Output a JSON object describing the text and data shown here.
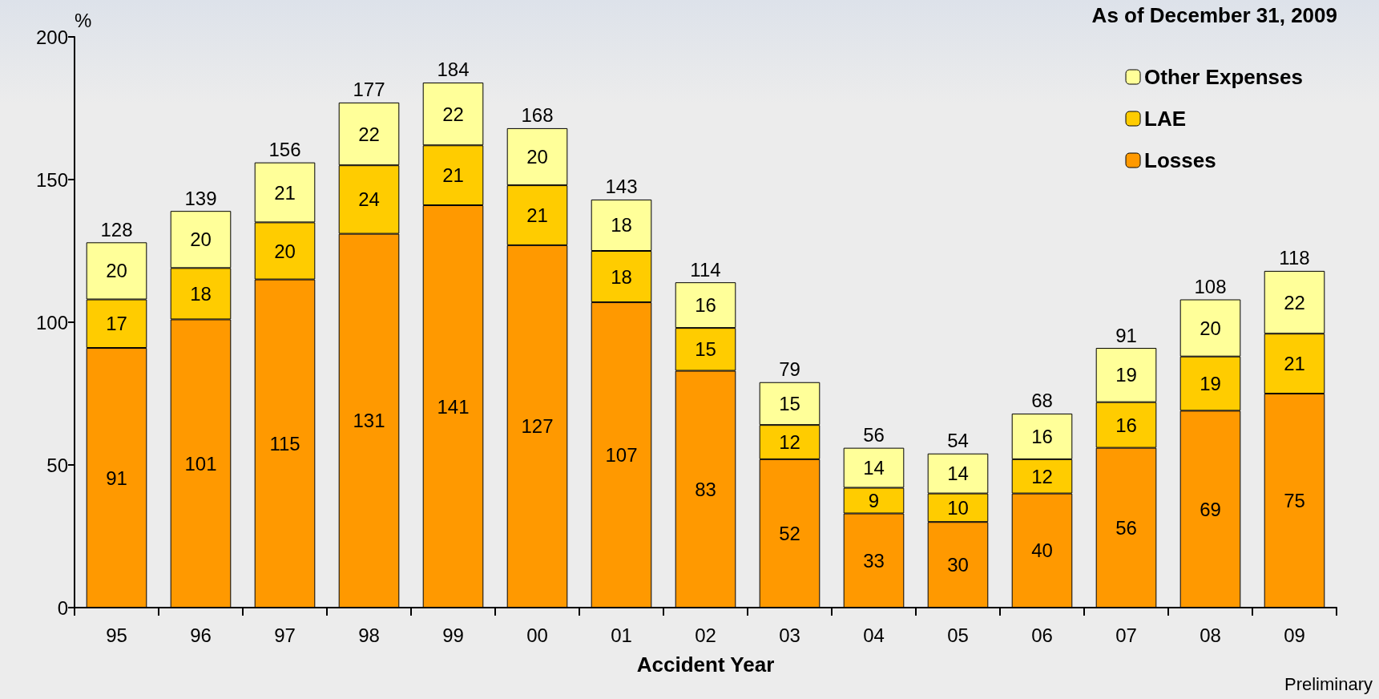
{
  "chart_data": {
    "type": "bar",
    "stacked": true,
    "ylabel": "%",
    "xlabel": "Accident Year",
    "categories": [
      "95",
      "96",
      "97",
      "98",
      "99",
      "00",
      "01",
      "02",
      "03",
      "04",
      "05",
      "06",
      "07",
      "08",
      "09"
    ],
    "series": [
      {
        "name": "Losses",
        "color": "#ff9900",
        "values": [
          91,
          101,
          115,
          131,
          141,
          127,
          107,
          83,
          52,
          33,
          30,
          40,
          56,
          69,
          75
        ]
      },
      {
        "name": "LAE",
        "color": "#ffcc00",
        "values": [
          17,
          18,
          20,
          24,
          21,
          21,
          18,
          15,
          12,
          9,
          10,
          12,
          16,
          19,
          21
        ]
      },
      {
        "name": "Other Expenses",
        "color": "#ffff99",
        "values": [
          20,
          20,
          21,
          22,
          22,
          20,
          18,
          16,
          15,
          14,
          14,
          16,
          19,
          20,
          22
        ]
      }
    ],
    "totals": [
      "128",
      "139",
      "156",
      "177",
      "184",
      "168",
      "143",
      "114",
      "79",
      "56",
      "54",
      "68",
      "91",
      "108",
      "118"
    ],
    "data_labels": true,
    "ylim": [
      0,
      200
    ],
    "yticks": [
      0,
      50,
      100,
      150,
      200
    ],
    "grid": false,
    "legend": "top right",
    "annotations": [
      "As of December 31, 2009",
      "Preliminary"
    ]
  }
}
